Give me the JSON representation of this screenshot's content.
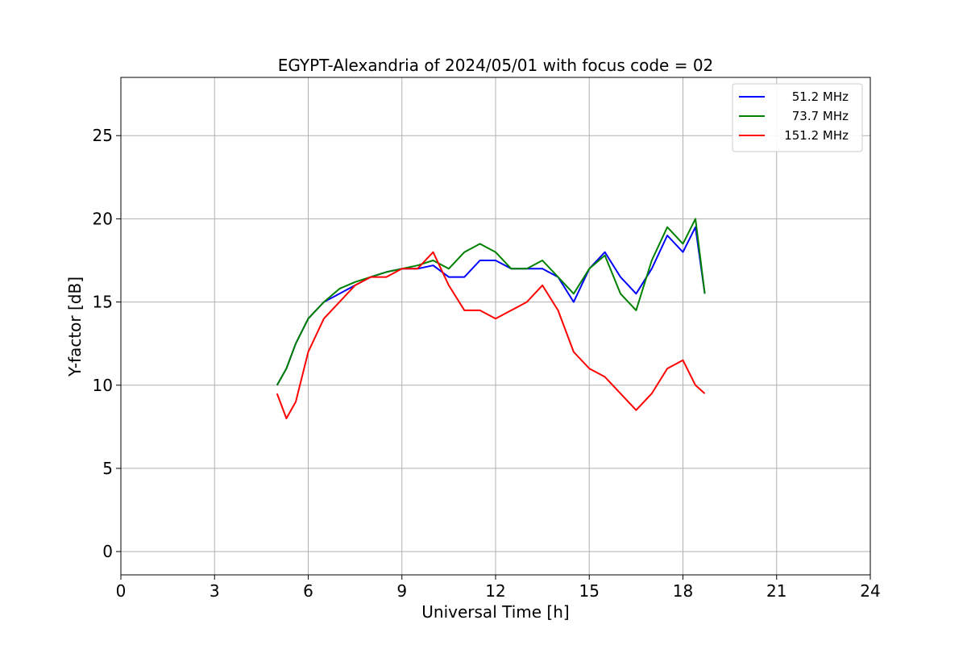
{
  "chart_data": {
    "type": "line",
    "title": "EGYPT-Alexandria of 2024/05/01 with focus code = 02",
    "xlabel": "Universal Time [h]",
    "ylabel": "Y-factor [dB]",
    "xlim": [
      0,
      24
    ],
    "ylim": [
      -1.4,
      28.5
    ],
    "xticks": [
      0,
      3,
      6,
      9,
      12,
      15,
      18,
      21,
      24
    ],
    "yticks": [
      0,
      5,
      10,
      15,
      20,
      25
    ],
    "grid": true,
    "legend_position": "top-right",
    "series": [
      {
        "name": "51.2 MHz",
        "color": "#0000ff",
        "x": [
          5.0,
          5.3,
          5.6,
          6.0,
          6.5,
          7.0,
          7.5,
          8.0,
          8.5,
          9.0,
          9.5,
          10.0,
          10.5,
          11.0,
          11.5,
          12.0,
          12.5,
          13.0,
          13.5,
          14.0,
          14.5,
          15.0,
          15.5,
          16.0,
          16.5,
          17.0,
          17.5,
          18.0,
          18.4,
          18.7
        ],
        "values": [
          10.0,
          11.0,
          12.5,
          14.0,
          15.0,
          15.5,
          16.0,
          16.5,
          16.8,
          17.0,
          17.0,
          17.2,
          16.5,
          16.5,
          17.5,
          17.5,
          17.0,
          17.0,
          17.0,
          16.5,
          15.0,
          17.0,
          18.0,
          16.5,
          15.5,
          17.0,
          19.0,
          18.0,
          19.5,
          15.5
        ]
      },
      {
        "name": "73.7 MHz",
        "color": "#008000",
        "x": [
          5.0,
          5.3,
          5.6,
          6.0,
          6.5,
          7.0,
          7.5,
          8.0,
          8.5,
          9.0,
          9.5,
          10.0,
          10.5,
          11.0,
          11.5,
          12.0,
          12.5,
          13.0,
          13.5,
          14.0,
          14.5,
          15.0,
          15.5,
          16.0,
          16.5,
          17.0,
          17.5,
          18.0,
          18.4,
          18.7
        ],
        "values": [
          10.0,
          11.0,
          12.5,
          14.0,
          15.0,
          15.8,
          16.2,
          16.5,
          16.8,
          17.0,
          17.2,
          17.5,
          17.0,
          18.0,
          18.5,
          18.0,
          17.0,
          17.0,
          17.5,
          16.5,
          15.5,
          17.0,
          17.8,
          15.5,
          14.5,
          17.5,
          19.5,
          18.5,
          20.0,
          15.5
        ]
      },
      {
        "name": "151.2 MHz",
        "color": "#ff0000",
        "x": [
          5.0,
          5.3,
          5.6,
          6.0,
          6.5,
          7.0,
          7.5,
          8.0,
          8.5,
          9.0,
          9.5,
          10.0,
          10.5,
          11.0,
          11.5,
          12.0,
          12.5,
          13.0,
          13.5,
          14.0,
          14.5,
          15.0,
          15.5,
          16.0,
          16.5,
          17.0,
          17.5,
          18.0,
          18.4,
          18.7
        ],
        "values": [
          9.5,
          8.0,
          9.0,
          12.0,
          14.0,
          15.0,
          16.0,
          16.5,
          16.5,
          17.0,
          17.0,
          18.0,
          16.0,
          14.5,
          14.5,
          14.0,
          14.5,
          15.0,
          16.0,
          14.5,
          12.0,
          11.0,
          10.5,
          9.5,
          8.5,
          9.5,
          11.0,
          11.5,
          10.0,
          9.5
        ]
      }
    ]
  }
}
